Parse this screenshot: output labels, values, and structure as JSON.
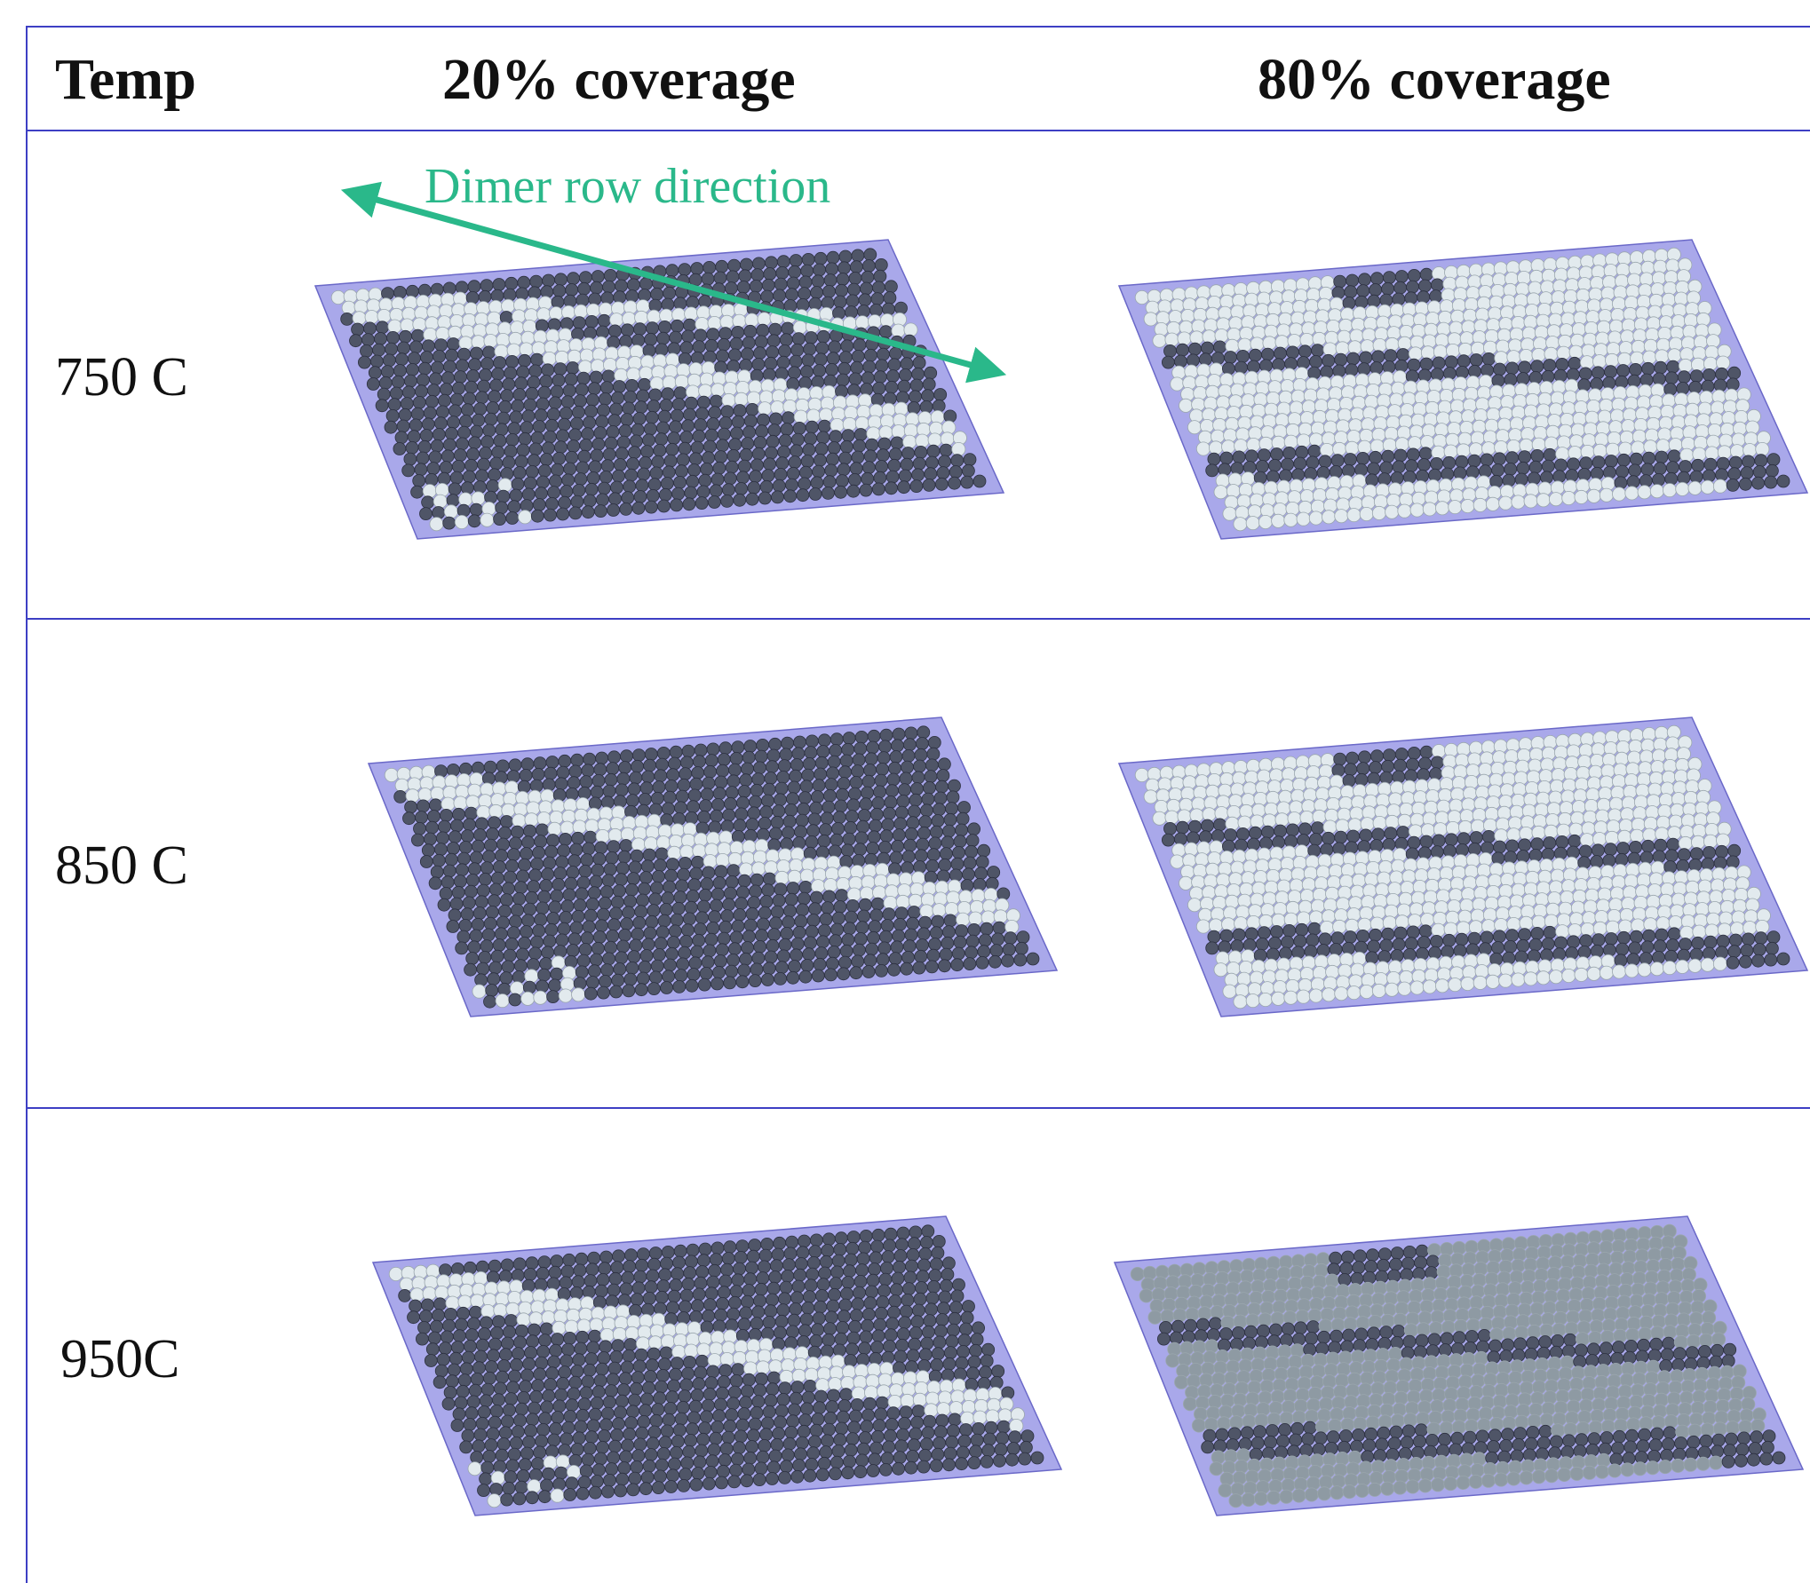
{
  "table": {
    "headers": {
      "temp": "Temp",
      "col1": "20% coverage",
      "col2": "80% coverage"
    },
    "rows": [
      {
        "label": "750 C"
      },
      {
        "label": "850 C"
      },
      {
        "label": "950C"
      }
    ]
  },
  "annotation": {
    "text": "Dimer row direction",
    "color": "#2ab88a"
  },
  "colors": {
    "frame": "#3d3fc4",
    "substrate": "#a9a8ea",
    "dark_atom": "#4f5567",
    "light_atom": "#e2eaee",
    "mid_atom": "#8e9aa3"
  },
  "panels": [
    {
      "row": 0,
      "coverage": 20
    },
    {
      "row": 0,
      "coverage": 80
    },
    {
      "row": 1,
      "coverage": 20
    },
    {
      "row": 1,
      "coverage": 80
    },
    {
      "row": 2,
      "coverage": 20
    },
    {
      "row": 2,
      "coverage": 80
    }
  ]
}
